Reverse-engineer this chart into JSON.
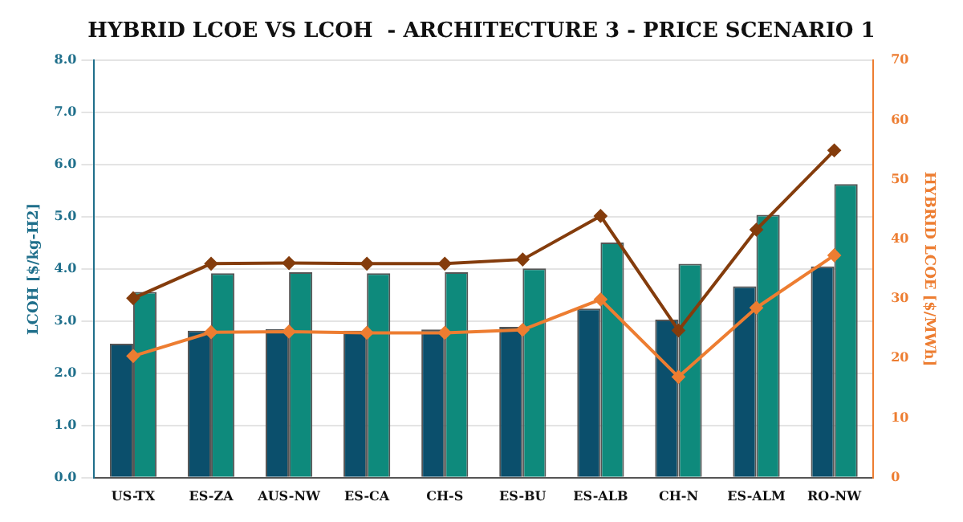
{
  "chart_data": {
    "type": "bar",
    "title": "HYBRID LCOE VS LCOH  - ARCHITECTURE 3 - PRICE SCENARIO 1",
    "ylabel": "LCOH [$/kg-H2]",
    "y2label": "HYBRID LCOE [$/MWh]",
    "categories": [
      "US-TX",
      "ES-ZA",
      "AUS-NW",
      "ES-CA",
      "CH-S",
      "ES-BU",
      "ES-ALB",
      "CH-N",
      "ES-ALM",
      "RO-NW"
    ],
    "series": [
      {
        "color": "#0b4f6c",
        "values": [
          2.57,
          2.82,
          2.85,
          2.82,
          2.84,
          2.89,
          3.24,
          3.03,
          3.67,
          4.05
        ]
      },
      {
        "color": "#0e8a7c",
        "values": [
          3.56,
          3.92,
          3.94,
          3.92,
          3.94,
          4.01,
          4.51,
          4.1,
          5.04,
          5.63
        ]
      },
      {
        "type": "line",
        "axis": "y2",
        "color": "#843c0c",
        "values": [
          30.1,
          35.9,
          36.0,
          35.9,
          35.9,
          36.6,
          43.9,
          24.7,
          41.6,
          54.9
        ]
      },
      {
        "type": "line",
        "axis": "y2",
        "color": "#ed7d31",
        "values": [
          20.4,
          24.4,
          24.5,
          24.3,
          24.3,
          24.8,
          29.9,
          16.9,
          28.5,
          37.3
        ]
      }
    ],
    "ylim": [
      0,
      8
    ],
    "yticks": [
      {
        "value": 0,
        "label": "0.0"
      },
      {
        "value": 1,
        "label": "1.0"
      },
      {
        "value": 2,
        "label": "2.0"
      },
      {
        "value": 3,
        "label": "3.0"
      },
      {
        "value": 4,
        "label": "4.0"
      },
      {
        "value": 5,
        "label": "5.0"
      },
      {
        "value": 6,
        "label": "6.0"
      },
      {
        "value": 7,
        "label": "7.0"
      },
      {
        "value": 8,
        "label": "8.0"
      }
    ],
    "y2lim": [
      0,
      70
    ],
    "y2ticks": [
      0,
      10,
      20,
      30,
      40,
      50,
      60,
      70
    ],
    "grid": "y",
    "legend": false,
    "marker": "diamond",
    "line_style": "solid"
  }
}
